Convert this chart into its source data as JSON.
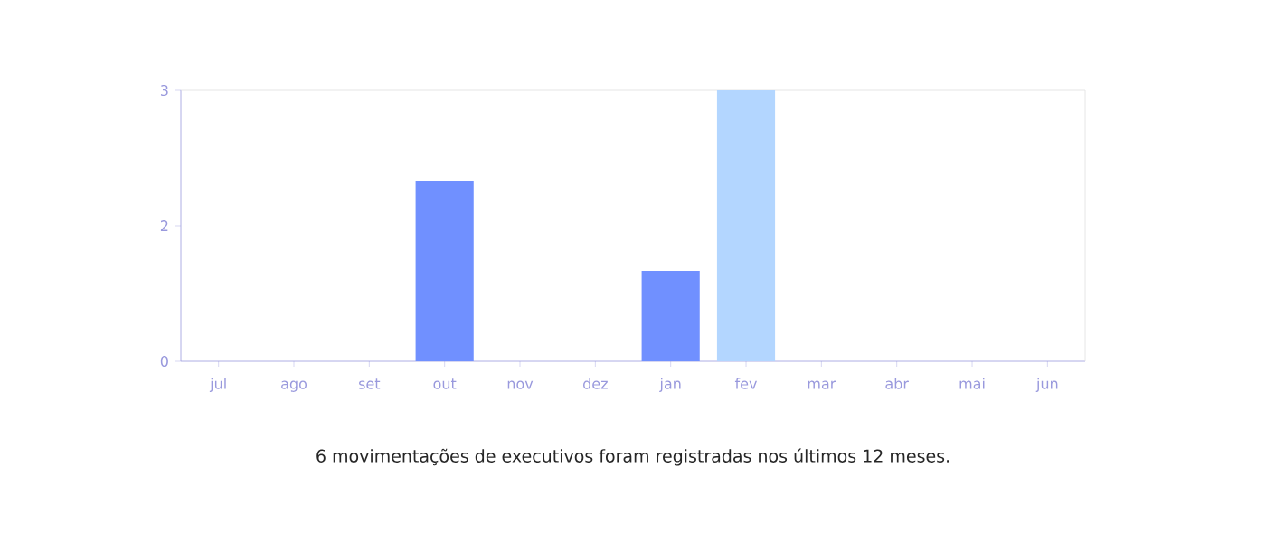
{
  "chart_data": {
    "type": "bar",
    "categories": [
      "jul",
      "ago",
      "set",
      "out",
      "nov",
      "dez",
      "jan",
      "fev",
      "mar",
      "abr",
      "mai",
      "jun"
    ],
    "values": [
      0,
      0,
      0,
      2,
      0,
      0,
      1,
      3,
      0,
      0,
      0,
      0
    ],
    "colors": [
      "#7090ff",
      "#7090ff",
      "#7090ff",
      "#7090ff",
      "#7090ff",
      "#7090ff",
      "#7090ff",
      "#b3d6ff",
      "#7090ff",
      "#7090ff",
      "#7090ff",
      "#7090ff"
    ],
    "ylim": [
      0,
      3
    ],
    "yticks": [
      0,
      {
        "value": 1.5,
        "label": "2"
      },
      3
    ],
    "annotations": [
      "6 movimentações de executivos foram registradas nos últimos 12 meses."
    ]
  }
}
